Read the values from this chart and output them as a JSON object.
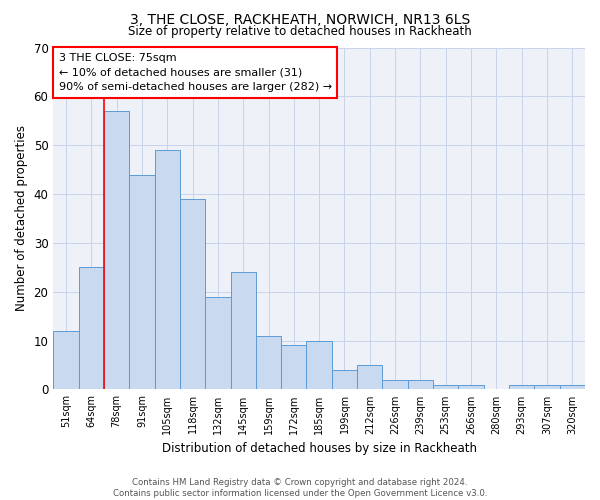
{
  "title": "3, THE CLOSE, RACKHEATH, NORWICH, NR13 6LS",
  "subtitle": "Size of property relative to detached houses in Rackheath",
  "xlabel": "Distribution of detached houses by size in Rackheath",
  "ylabel": "Number of detached properties",
  "categories": [
    "51sqm",
    "64sqm",
    "78sqm",
    "91sqm",
    "105sqm",
    "118sqm",
    "132sqm",
    "145sqm",
    "159sqm",
    "172sqm",
    "185sqm",
    "199sqm",
    "212sqm",
    "226sqm",
    "239sqm",
    "253sqm",
    "266sqm",
    "280sqm",
    "293sqm",
    "307sqm",
    "320sqm"
  ],
  "values": [
    12,
    25,
    57,
    44,
    49,
    39,
    19,
    24,
    11,
    9,
    10,
    4,
    5,
    2,
    2,
    1,
    1,
    0,
    1,
    1,
    1
  ],
  "bar_color": "#c9d9f0",
  "bar_edge_color": "#5b9bd5",
  "annotation_text_lines": [
    "3 THE CLOSE: 75sqm",
    "← 10% of detached houses are smaller (31)",
    "90% of semi-detached houses are larger (282) →"
  ],
  "ylim": [
    0,
    70
  ],
  "yticks": [
    0,
    10,
    20,
    30,
    40,
    50,
    60,
    70
  ],
  "grid_color": "#c8d4e8",
  "background_color": "#eef2f8",
  "footer_line1": "Contains HM Land Registry data © Crown copyright and database right 2024.",
  "footer_line2": "Contains public sector information licensed under the Open Government Licence v3.0."
}
